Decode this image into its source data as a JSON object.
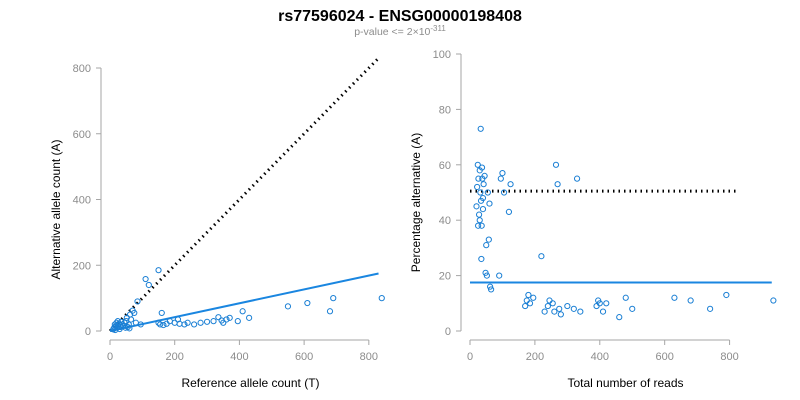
{
  "title": "rs77596024 - ENSG00000198408",
  "subtitle_prefix": "p-value <= 2×10",
  "subtitle_exp": "-311",
  "colors": {
    "points": "#1a7fd4",
    "fit": "#1a86e0",
    "dotted": "#000000",
    "axis": "#a6a6a6"
  },
  "chart_data": [
    {
      "type": "scatter",
      "xlabel": "Reference allele count (T)",
      "ylabel": "Alternative allele count (A)",
      "xlim": [
        0,
        850
      ],
      "ylim": [
        0,
        800
      ],
      "xticks": [
        0,
        200,
        400,
        600,
        800
      ],
      "yticks": [
        0,
        200,
        400,
        600,
        800
      ],
      "points": [
        [
          10,
          5
        ],
        [
          12,
          8
        ],
        [
          14,
          12
        ],
        [
          15,
          20
        ],
        [
          16,
          3
        ],
        [
          18,
          15
        ],
        [
          20,
          25
        ],
        [
          22,
          10
        ],
        [
          24,
          30
        ],
        [
          25,
          18
        ],
        [
          28,
          22
        ],
        [
          30,
          6
        ],
        [
          32,
          12
        ],
        [
          35,
          28
        ],
        [
          38,
          20
        ],
        [
          40,
          15
        ],
        [
          45,
          25
        ],
        [
          48,
          10
        ],
        [
          50,
          30
        ],
        [
          52,
          40
        ],
        [
          55,
          12
        ],
        [
          58,
          20
        ],
        [
          60,
          8
        ],
        [
          62,
          50
        ],
        [
          65,
          35
        ],
        [
          70,
          62
        ],
        [
          75,
          55
        ],
        [
          80,
          25
        ],
        [
          85,
          90
        ],
        [
          95,
          20
        ],
        [
          110,
          158
        ],
        [
          120,
          140
        ],
        [
          150,
          185
        ],
        [
          150,
          25
        ],
        [
          155,
          20
        ],
        [
          160,
          55
        ],
        [
          165,
          18
        ],
        [
          175,
          22
        ],
        [
          185,
          30
        ],
        [
          200,
          25
        ],
        [
          210,
          35
        ],
        [
          215,
          22
        ],
        [
          230,
          20
        ],
        [
          240,
          25
        ],
        [
          260,
          20
        ],
        [
          280,
          25
        ],
        [
          300,
          28
        ],
        [
          320,
          30
        ],
        [
          335,
          42
        ],
        [
          345,
          32
        ],
        [
          350,
          25
        ],
        [
          360,
          35
        ],
        [
          370,
          40
        ],
        [
          395,
          30
        ],
        [
          410,
          60
        ],
        [
          430,
          40
        ],
        [
          550,
          75
        ],
        [
          610,
          85
        ],
        [
          680,
          60
        ],
        [
          690,
          100
        ],
        [
          840,
          100
        ]
      ],
      "dotted_line": {
        "x": [
          0,
          830
        ],
        "y": [
          0,
          830
        ]
      },
      "fit_line": {
        "x": [
          0,
          830
        ],
        "y": [
          0,
          175
        ]
      }
    },
    {
      "type": "scatter",
      "xlabel": "Total number of reads",
      "ylabel": "Percentage alternative (A)",
      "xlim": [
        0,
        940
      ],
      "ylim": [
        0,
        100
      ],
      "xticks": [
        0,
        200,
        400,
        600,
        800
      ],
      "yticks": [
        0,
        20,
        40,
        60,
        80,
        100
      ],
      "points": [
        [
          20,
          45
        ],
        [
          22,
          52
        ],
        [
          24,
          60
        ],
        [
          25,
          38
        ],
        [
          26,
          55
        ],
        [
          28,
          42
        ],
        [
          30,
          58
        ],
        [
          30,
          40
        ],
        [
          32,
          50
        ],
        [
          33,
          73
        ],
        [
          34,
          47
        ],
        [
          35,
          26
        ],
        [
          36,
          38
        ],
        [
          37,
          59
        ],
        [
          38,
          55
        ],
        [
          40,
          48
        ],
        [
          40,
          44
        ],
        [
          42,
          53
        ],
        [
          45,
          56
        ],
        [
          48,
          21
        ],
        [
          50,
          31
        ],
        [
          52,
          20
        ],
        [
          55,
          50
        ],
        [
          58,
          33
        ],
        [
          60,
          46
        ],
        [
          62,
          16
        ],
        [
          65,
          15
        ],
        [
          90,
          20
        ],
        [
          95,
          55
        ],
        [
          100,
          57
        ],
        [
          105,
          50
        ],
        [
          120,
          43
        ],
        [
          125,
          53
        ],
        [
          170,
          9
        ],
        [
          175,
          11
        ],
        [
          180,
          13
        ],
        [
          185,
          10
        ],
        [
          195,
          12
        ],
        [
          220,
          27
        ],
        [
          230,
          7
        ],
        [
          240,
          9
        ],
        [
          245,
          11
        ],
        [
          255,
          10
        ],
        [
          260,
          7
        ],
        [
          265,
          60
        ],
        [
          270,
          53
        ],
        [
          275,
          8
        ],
        [
          280,
          6
        ],
        [
          300,
          9
        ],
        [
          320,
          8
        ],
        [
          330,
          55
        ],
        [
          340,
          7
        ],
        [
          390,
          9
        ],
        [
          395,
          11
        ],
        [
          400,
          10
        ],
        [
          410,
          7
        ],
        [
          420,
          10
        ],
        [
          460,
          5
        ],
        [
          480,
          12
        ],
        [
          500,
          8
        ],
        [
          630,
          12
        ],
        [
          680,
          11
        ],
        [
          740,
          8
        ],
        [
          790,
          13
        ],
        [
          935,
          11
        ]
      ],
      "dotted_line": {
        "x": [
          0,
          830
        ],
        "y": [
          50.5,
          50.5
        ]
      },
      "fit_line": {
        "x": [
          0,
          930
        ],
        "y": [
          17.5,
          17.5
        ]
      }
    }
  ]
}
